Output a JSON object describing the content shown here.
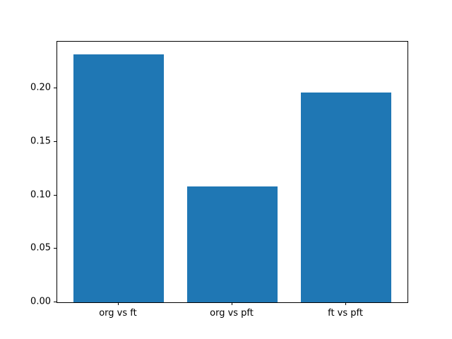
{
  "chart_data": {
    "type": "bar",
    "categories": [
      "org vs ft",
      "org vs pft",
      "ft vs pft"
    ],
    "values": [
      0.232,
      0.108,
      0.196
    ],
    "title": "",
    "xlabel": "",
    "ylabel": "",
    "ylim": [
      0,
      0.2436
    ],
    "xlim": [
      -0.54,
      2.54
    ],
    "bar_width_units": 0.8,
    "yticks": [
      0.0,
      0.05,
      0.1,
      0.15,
      0.2
    ],
    "ytick_labels": [
      "0.00",
      "0.05",
      "0.10",
      "0.15",
      "0.20"
    ],
    "bar_color": "#1f77b4",
    "grid": false,
    "legend": null,
    "background_color": "#ffffff",
    "axes_color": "#000000"
  }
}
